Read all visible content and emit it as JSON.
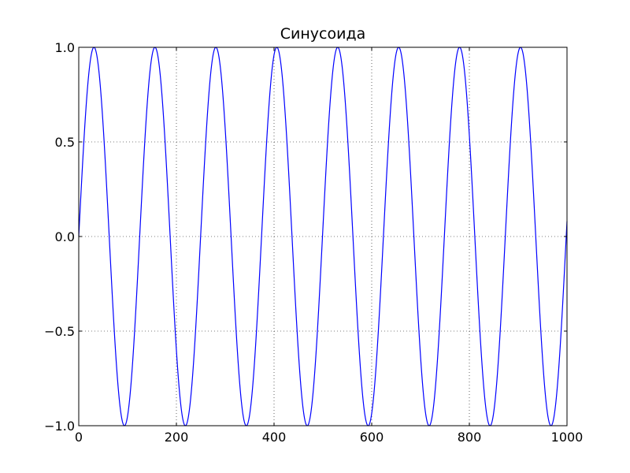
{
  "chart_data": {
    "type": "line",
    "title": "Синусоида",
    "xlabel": "",
    "ylabel": "",
    "xlim": [
      0,
      1000
    ],
    "ylim": [
      -1.0,
      1.0
    ],
    "grid": true,
    "x_ticks": [
      {
        "value": 0,
        "label": "0"
      },
      {
        "value": 200,
        "label": "200"
      },
      {
        "value": 400,
        "label": "400"
      },
      {
        "value": 600,
        "label": "600"
      },
      {
        "value": 800,
        "label": "800"
      },
      {
        "value": 1000,
        "label": "1000"
      }
    ],
    "y_ticks": [
      {
        "value": -1.0,
        "label": "−1.0"
      },
      {
        "value": -0.5,
        "label": "−0.5"
      },
      {
        "value": 0.0,
        "label": "0.0"
      },
      {
        "value": 0.5,
        "label": "0.5"
      },
      {
        "value": 1.0,
        "label": "1.0"
      }
    ],
    "series": [
      {
        "function": "sin",
        "amplitude": 1.0,
        "period": 124.8,
        "x_start": 0,
        "x_end": 1000,
        "color": "#0000ff"
      }
    ]
  }
}
